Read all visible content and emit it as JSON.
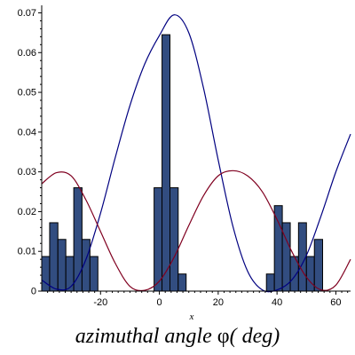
{
  "chart_data": {
    "type": "bar",
    "title": "",
    "xlabel": "x",
    "ylabel": "",
    "xlim": [
      -40,
      65
    ],
    "ylim": [
      0,
      0.071
    ],
    "x_ticks": [
      -20,
      0,
      20,
      40,
      60
    ],
    "x_tick_labels": [
      "-20",
      "0",
      "20",
      "40",
      "60"
    ],
    "y_ticks": [
      0,
      0.01,
      0.02,
      0.03,
      0.04,
      0.05,
      0.06,
      0.07
    ],
    "y_tick_labels": [
      "0",
      "0.01",
      "0.02",
      "0.03",
      "0.04",
      "0.05",
      "0.06",
      "0.07"
    ],
    "grid": false,
    "legend": "none",
    "histogram": {
      "bin_width": 2.73,
      "bins": [
        {
          "start": -40.0,
          "end": -37.3,
          "value": 0.0087
        },
        {
          "start": -37.3,
          "end": -34.5,
          "value": 0.0172
        },
        {
          "start": -34.5,
          "end": -31.8,
          "value": 0.013
        },
        {
          "start": -31.8,
          "end": -29.1,
          "value": 0.0087
        },
        {
          "start": -29.1,
          "end": -26.3,
          "value": 0.026
        },
        {
          "start": -26.3,
          "end": -23.6,
          "value": 0.013
        },
        {
          "start": -23.6,
          "end": -20.9,
          "value": 0.0087
        },
        {
          "start": -1.8,
          "end": 0.9,
          "value": 0.026
        },
        {
          "start": 0.9,
          "end": 3.6,
          "value": 0.0645
        },
        {
          "start": 3.6,
          "end": 6.4,
          "value": 0.026
        },
        {
          "start": 6.4,
          "end": 9.1,
          "value": 0.0043
        },
        {
          "start": 36.4,
          "end": 39.1,
          "value": 0.0043
        },
        {
          "start": 39.1,
          "end": 41.8,
          "value": 0.0215
        },
        {
          "start": 41.8,
          "end": 44.5,
          "value": 0.0172
        },
        {
          "start": 44.5,
          "end": 47.3,
          "value": 0.0087
        },
        {
          "start": 47.3,
          "end": 50.0,
          "value": 0.0172
        },
        {
          "start": 50.0,
          "end": 52.7,
          "value": 0.0087
        },
        {
          "start": 52.7,
          "end": 55.5,
          "value": 0.013
        }
      ]
    },
    "series": [
      {
        "type": "line",
        "x": [
          -40,
          -35,
          -30,
          -25,
          -20,
          -15,
          -10,
          -5,
          0,
          5,
          10,
          15,
          20,
          25,
          30,
          35,
          40,
          45,
          50,
          55,
          60,
          65
        ],
        "y": [
          0.0028,
          0.0005,
          0.0012,
          0.0079,
          0.0196,
          0.0336,
          0.0467,
          0.0571,
          0.0643,
          0.0695,
          0.065,
          0.0511,
          0.033,
          0.0163,
          0.005,
          0.0003,
          0.0003,
          0.0028,
          0.009,
          0.019,
          0.03,
          0.0395
        ],
        "color": "#000080"
      },
      {
        "type": "line",
        "x": [
          -40,
          -35,
          -30,
          -25,
          -20,
          -15,
          -10,
          -5,
          0,
          5,
          10,
          15,
          20,
          25,
          30,
          35,
          40,
          45,
          50,
          55,
          60,
          65
        ],
        "y": [
          0.027,
          0.0298,
          0.029,
          0.023,
          0.015,
          0.007,
          0.0012,
          0.0002,
          0.0025,
          0.0085,
          0.0165,
          0.024,
          0.029,
          0.0303,
          0.029,
          0.025,
          0.018,
          0.01,
          0.0035,
          0.0003,
          0.0015,
          0.008
        ],
        "color": "#800020"
      }
    ],
    "colors": {
      "bar_fill": "#324d80",
      "bar_stroke": "#000000",
      "axis": "#000000"
    },
    "caption": {
      "prefix": "azimuthal angle ",
      "symbol": "φ",
      "suffix": "( deg)"
    }
  }
}
